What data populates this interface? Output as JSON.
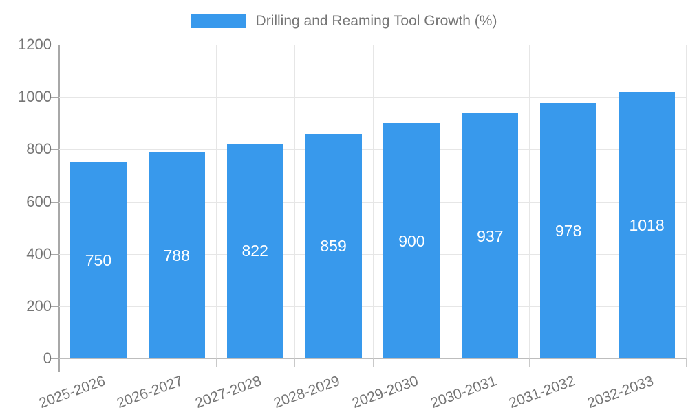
{
  "chart_data": {
    "type": "bar",
    "legend": "Drilling and Reaming Tool Growth (%)",
    "categories": [
      "2025-2026",
      "2026-2027",
      "2027-2028",
      "2028-2029",
      "2029-2030",
      "2030-2031",
      "2031-2032",
      "2032-2033"
    ],
    "values": [
      750,
      788,
      822,
      859,
      900,
      937,
      978,
      1018
    ],
    "bar_labels": [
      "750",
      "788",
      "822",
      "859",
      "900",
      "937",
      "978",
      "1018"
    ],
    "ytick_labels": [
      "0",
      "200",
      "400",
      "600",
      "800",
      "1000",
      "1200"
    ],
    "yticks": [
      0,
      200,
      400,
      600,
      800,
      1000,
      1200
    ],
    "ylim": [
      0,
      1200
    ],
    "grid": true,
    "legend_position": "top-center",
    "bar_label_position": "middle-inside",
    "colors": {
      "bar": "#3899EC",
      "bar_label": "#ffffff",
      "axis_text": "#757575",
      "legend_text": "#757575",
      "grid_line": "#e6e6e6",
      "axis_line": "#a8a8a8",
      "x_axis_line": "#bdbdbd",
      "tick_mark": "#c9c9c9",
      "background": "#ffffff"
    }
  }
}
